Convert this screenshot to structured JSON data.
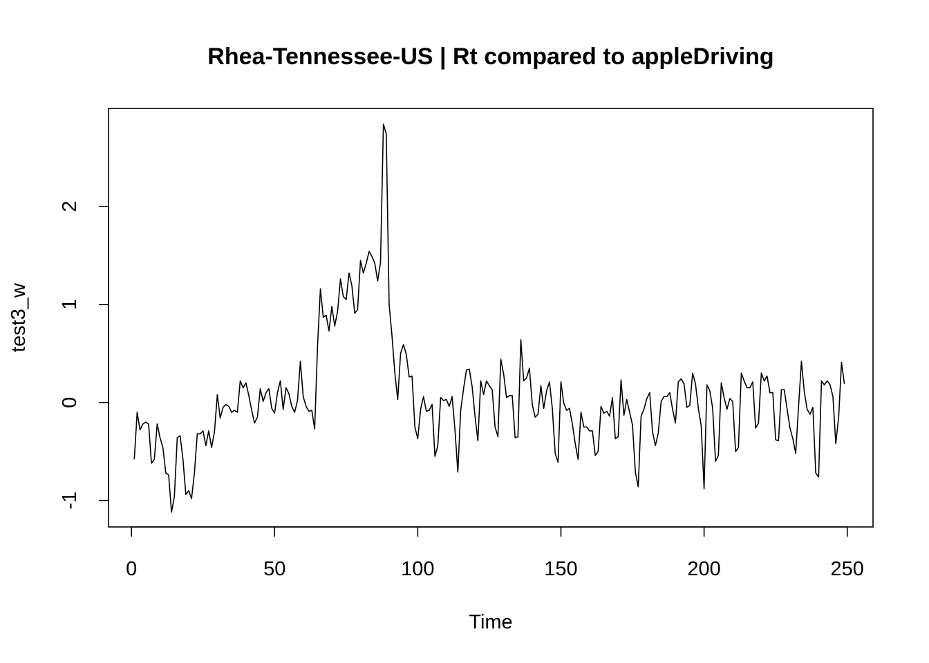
{
  "chart_data": {
    "type": "line",
    "title": "Rhea-Tennessee-US | Rt compared to appleDriving",
    "xlabel": "Time",
    "ylabel": "test3_w",
    "xlim": [
      -8,
      259
    ],
    "ylim": [
      -1.27,
      3.0
    ],
    "x_ticks": [
      0,
      50,
      100,
      150,
      200,
      250
    ],
    "x_tick_labels": [
      "0",
      "50",
      "100",
      "150",
      "200",
      "250"
    ],
    "y_ticks": [
      -1,
      0,
      1,
      2
    ],
    "y_tick_labels": [
      "-1",
      "0",
      "1",
      "2"
    ],
    "grid": false,
    "x_start": 1,
    "series": [
      {
        "values": [
          -0.58,
          -0.1,
          -0.28,
          -0.22,
          -0.2,
          -0.22,
          -0.62,
          -0.58,
          -0.22,
          -0.36,
          -0.46,
          -0.72,
          -0.74,
          -1.12,
          -0.96,
          -0.36,
          -0.34,
          -0.58,
          -0.94,
          -0.9,
          -0.98,
          -0.72,
          -0.32,
          -0.32,
          -0.29,
          -0.44,
          -0.29,
          -0.46,
          -0.3,
          0.08,
          -0.16,
          -0.05,
          -0.02,
          -0.04,
          -0.1,
          -0.08,
          -0.1,
          0.22,
          0.15,
          0.2,
          0.07,
          -0.08,
          -0.21,
          -0.15,
          0.14,
          0.01,
          0.1,
          0.14,
          -0.06,
          -0.11,
          0.1,
          0.22,
          -0.07,
          0.15,
          0.09,
          -0.04,
          -0.1,
          0.02,
          0.42,
          0.06,
          -0.04,
          -0.09,
          -0.08,
          -0.27,
          0.58,
          1.16,
          0.87,
          0.89,
          0.73,
          0.98,
          0.78,
          0.93,
          1.26,
          1.08,
          1.05,
          1.32,
          1.19,
          0.91,
          0.95,
          1.45,
          1.32,
          1.42,
          1.54,
          1.49,
          1.42,
          1.24,
          1.43,
          2.84,
          2.74,
          1.0,
          0.68,
          0.3,
          0.03,
          0.5,
          0.59,
          0.49,
          0.26,
          0.27,
          -0.25,
          -0.37,
          -0.07,
          0.06,
          -0.09,
          -0.08,
          -0.02,
          -0.55,
          -0.44,
          0.05,
          0.02,
          0.03,
          -0.04,
          0.06,
          -0.28,
          -0.71,
          -0.08,
          0.14,
          0.33,
          0.34,
          0.16,
          -0.14,
          -0.39,
          0.22,
          0.08,
          0.22,
          0.17,
          0.13,
          -0.25,
          -0.35,
          0.44,
          0.29,
          0.05,
          0.07,
          0.07,
          -0.36,
          -0.35,
          0.64,
          0.22,
          0.25,
          0.35,
          -0.02,
          -0.15,
          -0.12,
          0.17,
          -0.06,
          0.12,
          0.21,
          -0.06,
          -0.52,
          -0.61,
          0.21,
          -0.01,
          -0.08,
          -0.06,
          -0.22,
          -0.42,
          -0.58,
          -0.1,
          -0.25,
          -0.25,
          -0.29,
          -0.29,
          -0.54,
          -0.5,
          -0.04,
          -0.11,
          -0.09,
          -0.14,
          0.05,
          -0.37,
          -0.35,
          0.23,
          -0.13,
          0.03,
          -0.1,
          -0.23,
          -0.71,
          -0.86,
          -0.14,
          -0.07,
          0.04,
          0.1,
          -0.3,
          -0.44,
          -0.31,
          0.01,
          0.06,
          0.06,
          0.1,
          -0.07,
          -0.21,
          0.21,
          0.24,
          0.19,
          -0.05,
          -0.03,
          0.3,
          0.19,
          -0.06,
          -0.24,
          -0.88,
          0.18,
          0.12,
          -0.06,
          -0.6,
          -0.54,
          0.2,
          0.05,
          -0.07,
          0.04,
          0.01,
          -0.5,
          -0.46,
          0.3,
          0.22,
          0.15,
          0.15,
          0.21,
          -0.26,
          -0.21,
          0.3,
          0.22,
          0.27,
          0.1,
          0.1,
          -0.38,
          -0.39,
          0.13,
          0.13,
          -0.07,
          -0.26,
          -0.37,
          -0.52,
          -0.04,
          0.42,
          0.11,
          -0.07,
          -0.12,
          -0.05,
          -0.72,
          -0.76,
          0.22,
          0.18,
          0.22,
          0.18,
          0.06,
          -0.42,
          -0.15,
          0.41,
          0.19
        ]
      }
    ]
  }
}
